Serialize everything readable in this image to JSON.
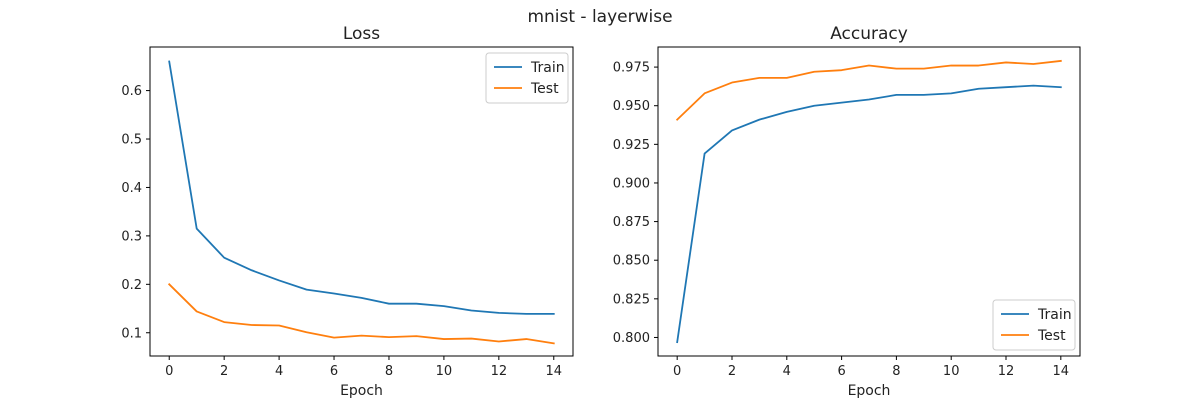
{
  "figure": {
    "suptitle": "mnist - layerwise"
  },
  "chart_data": [
    {
      "type": "line",
      "title": "Loss",
      "xlabel": "Epoch",
      "ylabel": "",
      "xlim": [
        -0.7,
        14.7
      ],
      "ylim": [
        0.052,
        0.69
      ],
      "xticks": [
        0,
        2,
        4,
        6,
        8,
        10,
        12,
        14
      ],
      "yticks": [
        0.1,
        0.2,
        0.3,
        0.4,
        0.5,
        0.6
      ],
      "ytick_labels": [
        "0.1",
        "0.2",
        "0.3",
        "0.4",
        "0.5",
        "0.6"
      ],
      "legend_position": "top-right",
      "x": [
        0,
        1,
        2,
        3,
        4,
        5,
        6,
        7,
        8,
        9,
        10,
        11,
        12,
        13,
        14
      ],
      "series": [
        {
          "name": "Train",
          "color": "#1f77b4",
          "values": [
            0.66,
            0.315,
            0.255,
            0.229,
            0.208,
            0.189,
            0.181,
            0.172,
            0.16,
            0.16,
            0.155,
            0.146,
            0.141,
            0.139,
            0.139
          ]
        },
        {
          "name": "Test",
          "color": "#ff7f0e",
          "values": [
            0.2,
            0.144,
            0.122,
            0.116,
            0.115,
            0.101,
            0.09,
            0.094,
            0.091,
            0.093,
            0.087,
            0.088,
            0.082,
            0.087,
            0.078
          ]
        }
      ]
    },
    {
      "type": "line",
      "title": "Accuracy",
      "xlabel": "Epoch",
      "ylabel": "",
      "xlim": [
        -0.7,
        14.7
      ],
      "ylim": [
        0.788,
        0.988
      ],
      "xticks": [
        0,
        2,
        4,
        6,
        8,
        10,
        12,
        14
      ],
      "yticks": [
        0.8,
        0.825,
        0.85,
        0.875,
        0.9,
        0.925,
        0.95,
        0.975
      ],
      "ytick_labels": [
        "0.800",
        "0.825",
        "0.850",
        "0.875",
        "0.900",
        "0.925",
        "0.950",
        "0.975"
      ],
      "legend_position": "bottom-right",
      "x": [
        0,
        1,
        2,
        3,
        4,
        5,
        6,
        7,
        8,
        9,
        10,
        11,
        12,
        13,
        14
      ],
      "series": [
        {
          "name": "Train",
          "color": "#1f77b4",
          "values": [
            0.797,
            0.919,
            0.934,
            0.941,
            0.946,
            0.95,
            0.952,
            0.954,
            0.957,
            0.957,
            0.958,
            0.961,
            0.962,
            0.963,
            0.962
          ]
        },
        {
          "name": "Test",
          "color": "#ff7f0e",
          "values": [
            0.941,
            0.958,
            0.965,
            0.968,
            0.968,
            0.972,
            0.973,
            0.976,
            0.974,
            0.974,
            0.976,
            0.976,
            0.978,
            0.977,
            0.979
          ]
        }
      ]
    }
  ]
}
